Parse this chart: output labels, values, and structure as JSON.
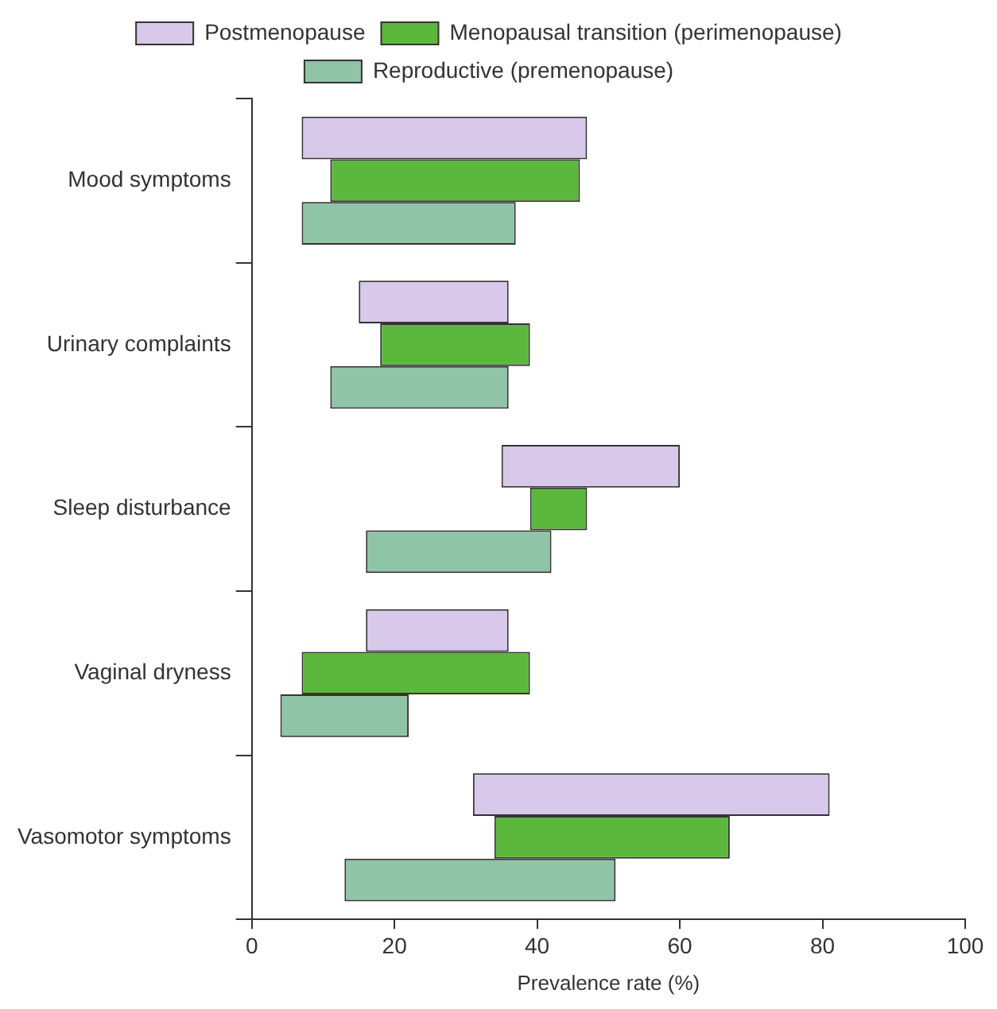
{
  "chart_data": {
    "type": "bar",
    "orientation": "horizontal",
    "xlabel": "Prevalence rate (%)",
    "categories": [
      "Mood symptoms",
      "Urinary complaints",
      "Sleep disturbance",
      "Vaginal dryness",
      "Vasomotor symptoms"
    ],
    "series": [
      {
        "name": "Postmenopause",
        "color": "#d8c8ea",
        "base": [
          7,
          15,
          35,
          16,
          31
        ],
        "values": [
          40,
          21,
          25,
          20,
          50
        ]
      },
      {
        "name": "Menopausal transition (perimenopause)",
        "color": "#5cb83c",
        "base": [
          11,
          18,
          39,
          7,
          34
        ],
        "values": [
          35,
          21,
          8,
          32,
          33
        ]
      },
      {
        "name": "Reproductive (premenopause)",
        "color": "#8fc4a6",
        "base": [
          7,
          11,
          16,
          4,
          13
        ],
        "values": [
          30,
          25,
          26,
          18,
          38
        ]
      }
    ],
    "xlim": [
      0,
      100
    ],
    "xticks": [
      0,
      20,
      40,
      60,
      80,
      100
    ],
    "grid": false,
    "legend": "top"
  }
}
